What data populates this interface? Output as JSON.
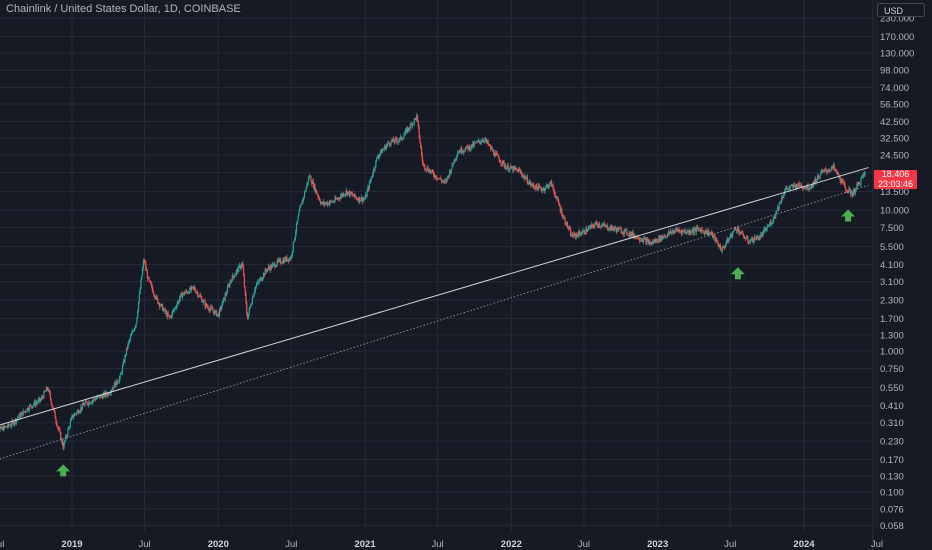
{
  "header": {
    "title": "Chainlink / United States Dollar, 1D, COINBASE",
    "currency": "USD"
  },
  "price_tag": {
    "price": "18.406",
    "countdown": "23:03:46",
    "color": "#f23645"
  },
  "colors": {
    "background": "#161a25",
    "grid": "#262a36",
    "up": "#26a69a",
    "down": "#ef5350",
    "trendline": "#d1d4dc",
    "arrow": "#4caf50"
  },
  "chart_data": {
    "type": "candlestick",
    "symbol": "LINK/USD",
    "interval": "1D",
    "exchange": "COINBASE",
    "y_scale": "log",
    "grid": true,
    "y_ticks": [
      "230.000",
      "170.000",
      "130.000",
      "98.000",
      "74.000",
      "56.500",
      "42.500",
      "32.500",
      "24.500",
      "18.406",
      "13.500",
      "10.000",
      "7.500",
      "5.500",
      "4.100",
      "3.100",
      "2.300",
      "1.700",
      "1.300",
      "1.000",
      "0.750",
      "0.550",
      "0.410",
      "0.310",
      "0.230",
      "0.170",
      "0.130",
      "0.100",
      "0.076",
      "0.058"
    ],
    "x_ticks": [
      {
        "label": "Jul",
        "date": "2018-07-01",
        "year": false
      },
      {
        "label": "2019",
        "date": "2019-01-01",
        "year": true
      },
      {
        "label": "Jul",
        "date": "2019-07-01",
        "year": false
      },
      {
        "label": "2020",
        "date": "2020-01-01",
        "year": true
      },
      {
        "label": "Jul",
        "date": "2020-07-01",
        "year": false
      },
      {
        "label": "2021",
        "date": "2021-01-01",
        "year": true
      },
      {
        "label": "Jul",
        "date": "2021-07-01",
        "year": false
      },
      {
        "label": "2022",
        "date": "2022-01-01",
        "year": true
      },
      {
        "label": "Jul",
        "date": "2022-07-01",
        "year": false
      },
      {
        "label": "2023",
        "date": "2023-01-01",
        "year": true
      },
      {
        "label": "Jul",
        "date": "2023-07-01",
        "year": false
      },
      {
        "label": "2024",
        "date": "2024-01-01",
        "year": true
      },
      {
        "label": "Jul",
        "date": "2024-07-01",
        "year": false
      }
    ],
    "price_path": [
      [
        "2018-06-15",
        0.26
      ],
      [
        "2018-08-01",
        0.3
      ],
      [
        "2018-09-15",
        0.4
      ],
      [
        "2018-10-15",
        0.45
      ],
      [
        "2018-11-01",
        0.55
      ],
      [
        "2018-11-25",
        0.3
      ],
      [
        "2018-12-10",
        0.21
      ],
      [
        "2019-01-01",
        0.34
      ],
      [
        "2019-02-01",
        0.42
      ],
      [
        "2019-03-01",
        0.46
      ],
      [
        "2019-04-01",
        0.5
      ],
      [
        "2019-05-01",
        0.65
      ],
      [
        "2019-05-20",
        1.1
      ],
      [
        "2019-06-10",
        1.6
      ],
      [
        "2019-06-29",
        4.5
      ],
      [
        "2019-07-10",
        3.2
      ],
      [
        "2019-08-01",
        2.3
      ],
      [
        "2019-09-01",
        1.7
      ],
      [
        "2019-10-01",
        2.5
      ],
      [
        "2019-11-01",
        2.8
      ],
      [
        "2019-12-01",
        2.1
      ],
      [
        "2020-01-01",
        1.8
      ],
      [
        "2020-02-01",
        3.2
      ],
      [
        "2020-03-01",
        4.2
      ],
      [
        "2020-03-13",
        1.7
      ],
      [
        "2020-04-01",
        2.8
      ],
      [
        "2020-05-01",
        3.8
      ],
      [
        "2020-06-01",
        4.3
      ],
      [
        "2020-06-30",
        4.6
      ],
      [
        "2020-07-20",
        9.5
      ],
      [
        "2020-08-15",
        17.5
      ],
      [
        "2020-09-15",
        11.0
      ],
      [
        "2020-10-15",
        11.5
      ],
      [
        "2020-11-15",
        13.5
      ],
      [
        "2020-12-15",
        12.0
      ],
      [
        "2021-01-01",
        12.0
      ],
      [
        "2021-02-01",
        24.0
      ],
      [
        "2021-03-01",
        30.0
      ],
      [
        "2021-04-01",
        32.0
      ],
      [
        "2021-05-10",
        46.0
      ],
      [
        "2021-05-25",
        21.0
      ],
      [
        "2021-06-20",
        18.0
      ],
      [
        "2021-07-20",
        15.5
      ],
      [
        "2021-08-20",
        26.0
      ],
      [
        "2021-09-20",
        28.0
      ],
      [
        "2021-10-25",
        32.0
      ],
      [
        "2021-11-20",
        25.0
      ],
      [
        "2021-12-20",
        20.0
      ],
      [
        "2022-01-20",
        19.0
      ],
      [
        "2022-02-20",
        15.0
      ],
      [
        "2022-03-20",
        14.0
      ],
      [
        "2022-04-10",
        15.5
      ],
      [
        "2022-05-10",
        9.0
      ],
      [
        "2022-06-01",
        6.5
      ],
      [
        "2022-07-01",
        7.0
      ],
      [
        "2022-08-01",
        8.0
      ],
      [
        "2022-09-01",
        7.5
      ],
      [
        "2022-10-01",
        7.2
      ],
      [
        "2022-11-10",
        6.5
      ],
      [
        "2022-12-15",
        5.8
      ],
      [
        "2023-01-15",
        6.5
      ],
      [
        "2023-02-15",
        7.2
      ],
      [
        "2023-03-15",
        7.0
      ],
      [
        "2023-04-15",
        7.3
      ],
      [
        "2023-05-15",
        6.8
      ],
      [
        "2023-06-10",
        5.2
      ],
      [
        "2023-07-15",
        7.5
      ],
      [
        "2023-08-15",
        6.0
      ],
      [
        "2023-09-15",
        6.5
      ],
      [
        "2023-10-15",
        8.5
      ],
      [
        "2023-11-15",
        14.0
      ],
      [
        "2023-12-15",
        15.0
      ],
      [
        "2024-01-15",
        14.5
      ],
      [
        "2024-02-15",
        18.5
      ],
      [
        "2024-03-15",
        20.0
      ],
      [
        "2024-04-15",
        14.0
      ],
      [
        "2024-05-01",
        13.0
      ],
      [
        "2024-05-20",
        16.0
      ],
      [
        "2024-06-01",
        18.4
      ]
    ],
    "trendlines": [
      {
        "style": "solid",
        "start": [
          "2018-06-01",
          0.28
        ],
        "end": [
          "2024-06-10",
          20.0
        ]
      },
      {
        "style": "dotted",
        "start": [
          "2018-06-01",
          0.16
        ],
        "end": [
          "2024-06-10",
          15.0
        ]
      }
    ],
    "annotations": [
      {
        "type": "arrow-up",
        "date": "2018-12-10",
        "price": 0.14
      },
      {
        "type": "arrow-up",
        "date": "2023-07-20",
        "price": 3.5
      },
      {
        "type": "arrow-up",
        "date": "2024-04-20",
        "price": 9.0
      }
    ]
  }
}
